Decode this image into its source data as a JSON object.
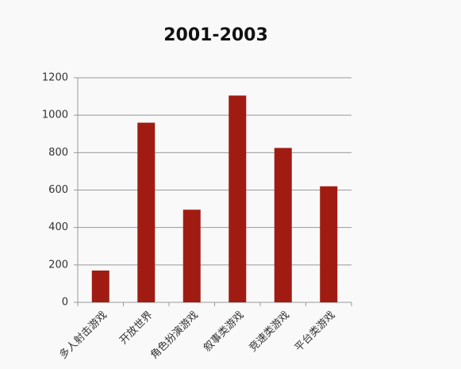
{
  "chart_data": {
    "type": "bar",
    "title": "2001-2003",
    "categories": [
      "多人射击游戏",
      "开放世界",
      "角色扮演游戏",
      "叙事类游戏",
      "竞速类游戏",
      "平台类游戏"
    ],
    "values": [
      170,
      960,
      495,
      1105,
      825,
      620
    ],
    "color": "#a01c12",
    "ylim": [
      0,
      1200
    ],
    "yticks": [
      0,
      200,
      400,
      600,
      800,
      1000,
      1200
    ],
    "grid": true
  }
}
